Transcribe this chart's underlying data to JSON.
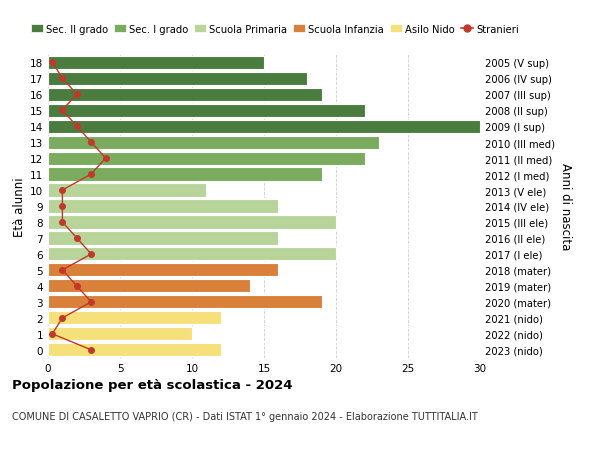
{
  "ages": [
    18,
    17,
    16,
    15,
    14,
    13,
    12,
    11,
    10,
    9,
    8,
    7,
    6,
    5,
    4,
    3,
    2,
    1,
    0
  ],
  "right_labels": [
    "2005 (V sup)",
    "2006 (IV sup)",
    "2007 (III sup)",
    "2008 (II sup)",
    "2009 (I sup)",
    "2010 (III med)",
    "2011 (II med)",
    "2012 (I med)",
    "2013 (V ele)",
    "2014 (IV ele)",
    "2015 (III ele)",
    "2016 (II ele)",
    "2017 (I ele)",
    "2018 (mater)",
    "2019 (mater)",
    "2020 (mater)",
    "2021 (nido)",
    "2022 (nido)",
    "2023 (nido)"
  ],
  "bar_values": [
    15,
    18,
    19,
    22,
    30,
    23,
    22,
    19,
    11,
    16,
    20,
    16,
    20,
    16,
    14,
    19,
    12,
    10,
    12
  ],
  "bar_colors": [
    "#4a7c3f",
    "#4a7c3f",
    "#4a7c3f",
    "#4a7c3f",
    "#4a7c3f",
    "#7aab5e",
    "#7aab5e",
    "#7aab5e",
    "#b8d49a",
    "#b8d49a",
    "#b8d49a",
    "#b8d49a",
    "#b8d49a",
    "#d9813a",
    "#d9813a",
    "#d9813a",
    "#f5e07a",
    "#f5e07a",
    "#f5e07a"
  ],
  "stranieri_x": [
    0.3,
    1,
    2,
    1,
    2,
    3,
    4,
    3,
    1,
    1,
    1,
    2,
    3,
    1,
    2,
    3,
    1,
    0.3,
    3
  ],
  "title": "Popolazione per età scolastica - 2024",
  "subtitle": "COMUNE DI CASALETTO VAPRIO (CR) - Dati ISTAT 1° gennaio 2024 - Elaborazione TUTTITALIA.IT",
  "ylabel_left": "Età alunni",
  "ylabel_right": "Anni di nascita",
  "xlim": [
    0,
    30
  ],
  "xticks": [
    0,
    5,
    10,
    15,
    20,
    25,
    30
  ],
  "legend_labels": [
    "Sec. II grado",
    "Sec. I grado",
    "Scuola Primaria",
    "Scuola Infanzia",
    "Asilo Nido",
    "Stranieri"
  ],
  "legend_colors": [
    "#4a7c3f",
    "#7aab5e",
    "#b8d49a",
    "#d9813a",
    "#f5e07a",
    "#c0392b"
  ],
  "stranieri_color": "#c0392b",
  "grid_color": "#cccccc",
  "bg_color": "#ffffff",
  "bar_height": 0.82
}
